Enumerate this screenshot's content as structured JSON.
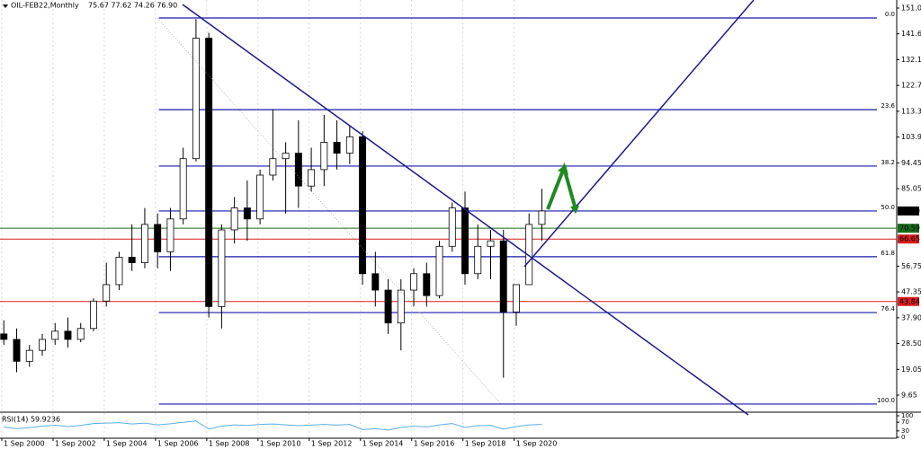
{
  "chart_data": [
    {
      "type": "candlestick",
      "title": "OIL-FEB22,Monthly",
      "subtitle": "75.67 77.62 74.26 76.90",
      "x": [
        2000.75,
        2001.25,
        2001.75,
        2002.25,
        2002.75,
        2003.25,
        2003.75,
        2004.25,
        2004.75,
        2005.25,
        2005.75,
        2006.25,
        2006.75,
        2007.25,
        2007.75,
        2008.25,
        2008.75,
        2009.25,
        2009.75,
        2010.25,
        2010.75,
        2011.25,
        2011.75,
        2012.25,
        2012.75,
        2013.25,
        2013.75,
        2014.25,
        2014.75,
        2015.25,
        2015.75,
        2016.25,
        2016.75,
        2017.25,
        2017.75,
        2018.25,
        2018.75,
        2019.25,
        2019.75,
        2020.25,
        2020.75,
        2021.25,
        2021.75
      ],
      "open": [
        32,
        30,
        22,
        26,
        30,
        33,
        30,
        34,
        44,
        50,
        60,
        58,
        72,
        62,
        74,
        96,
        140,
        42,
        70,
        78,
        74,
        90,
        96,
        98,
        86,
        92,
        102,
        98,
        104,
        54,
        48,
        36,
        48,
        54,
        46,
        64,
        78,
        54,
        64,
        66,
        40,
        50,
        72
      ],
      "high": [
        37,
        34,
        28,
        32,
        36,
        38,
        36,
        45,
        58,
        62,
        72,
        78,
        76,
        78,
        100,
        147,
        142,
        72,
        82,
        88,
        92,
        114,
        102,
        110,
        100,
        112,
        110,
        108,
        106,
        62,
        52,
        52,
        56,
        58,
        66,
        80,
        84,
        72,
        70,
        70,
        50,
        76,
        85
      ],
      "low": [
        28,
        18,
        20,
        24,
        28,
        27,
        29,
        33,
        42,
        48,
        55,
        56,
        56,
        55,
        72,
        95,
        38,
        34,
        65,
        66,
        72,
        88,
        76,
        78,
        84,
        86,
        92,
        94,
        50,
        42,
        32,
        26,
        42,
        42,
        45,
        62,
        50,
        52,
        52,
        16,
        35,
        50,
        66
      ],
      "close": [
        30,
        22,
        26,
        30,
        33,
        30,
        34,
        44,
        50,
        60,
        58,
        72,
        62,
        74,
        96,
        140,
        42,
        70,
        78,
        74,
        90,
        96,
        98,
        86,
        92,
        102,
        98,
        104,
        54,
        48,
        36,
        48,
        54,
        46,
        64,
        78,
        54,
        64,
        66,
        40,
        50,
        72,
        76.9
      ],
      "up_color": "#ffffff",
      "down_color": "#000000",
      "xlim": [
        2000.6,
        2035.6
      ],
      "xticks": [
        {
          "value": 2000.67,
          "label": "1 Sep 2000"
        },
        {
          "value": 2002.67,
          "label": "1 Sep 2002"
        },
        {
          "value": 2004.67,
          "label": "1 Sep 2004"
        },
        {
          "value": 2006.67,
          "label": "1 Sep 2006"
        },
        {
          "value": 2008.67,
          "label": "1 Sep 2008"
        },
        {
          "value": 2010.67,
          "label": "1 Sep 2010"
        },
        {
          "value": 2012.67,
          "label": "1 Sep 2012"
        },
        {
          "value": 2014.67,
          "label": "1 Sep 2014"
        },
        {
          "value": 2016.67,
          "label": "1 Sep 2016"
        },
        {
          "value": 2018.67,
          "label": "1 Sep 2018"
        },
        {
          "value": 2020.67,
          "label": "1 Sep 2020"
        }
      ],
      "ylim": [
        3.75,
        153.95
      ],
      "yticks": [
        {
          "value": 151,
          "label": "151.00"
        },
        {
          "value": 141.6,
          "label": "141.60"
        },
        132.15,
        122.75,
        {
          "value": 113.3,
          "label": "113.30"
        },
        {
          "value": 103.9,
          "label": "103.90"
        },
        94.45,
        85.05,
        56.75,
        47.35,
        {
          "value": 37.9,
          "label": "37.90"
        },
        {
          "value": 28.5,
          "label": "28.50"
        },
        19.05,
        9.65
      ],
      "grid": true,
      "fib_color": "#1a1aa8",
      "fib_levels": [
        {
          "value": 147.4,
          "label": "0.0"
        },
        {
          "value": 113.9,
          "label": "23.6"
        },
        {
          "value": 93.3,
          "label": "38.2"
        },
        {
          "value": 76.9,
          "label": "50.0"
        },
        {
          "value": 60.2,
          "label": "61.8"
        },
        {
          "value": 39.8,
          "label": "76.4"
        },
        {
          "value": 6.4,
          "label": "100.0"
        }
      ],
      "levels": [
        {
          "value": 76.9,
          "label": "76.90",
          "color": "#000000",
          "line": false
        },
        {
          "value": 70.59,
          "label": "70.59",
          "color": "#1a6b1a",
          "line": true
        },
        {
          "value": 66.65,
          "label": "66.65",
          "color": "#d81e1e",
          "line": true
        },
        {
          "value": 43.84,
          "label": "43.84",
          "color": "#d81e1e",
          "line": true
        }
      ]
    },
    {
      "type": "line",
      "title": "RSI(14) 59.9236",
      "x": [
        2000.75,
        2001.25,
        2001.75,
        2002.25,
        2002.75,
        2003.25,
        2003.75,
        2004.25,
        2004.75,
        2005.25,
        2005.75,
        2006.25,
        2006.75,
        2007.25,
        2007.75,
        2008.25,
        2008.75,
        2009.25,
        2009.75,
        2010.25,
        2010.75,
        2011.25,
        2011.75,
        2012.25,
        2012.75,
        2013.25,
        2013.75,
        2014.25,
        2014.75,
        2015.25,
        2015.75,
        2016.25,
        2016.75,
        2017.25,
        2017.75,
        2018.25,
        2018.75,
        2019.25,
        2019.75,
        2020.25,
        2020.75,
        2021.25,
        2021.75
      ],
      "values": [
        48,
        40,
        45,
        52,
        56,
        50,
        55,
        64,
        66,
        68,
        62,
        66,
        58,
        63,
        70,
        76,
        38,
        52,
        58,
        55,
        60,
        62,
        58,
        54,
        57,
        60,
        57,
        60,
        36,
        40,
        34,
        46,
        52,
        48,
        58,
        64,
        46,
        54,
        55,
        38,
        50,
        58,
        59.92
      ],
      "color": "#5aaee0",
      "ylim": [
        0,
        100
      ],
      "yticks": [
        100,
        70,
        30,
        0
      ]
    }
  ]
}
